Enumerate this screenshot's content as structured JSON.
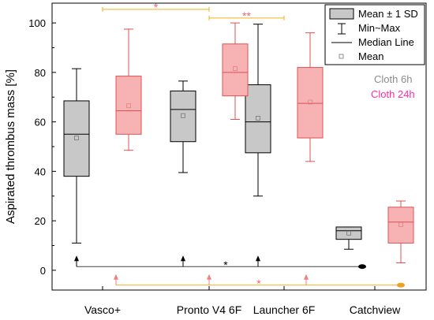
{
  "chart_data": {
    "type": "box",
    "ylabel": "Aspirated thrombus mass [%]",
    "xlabel": "",
    "ylim": [
      -8,
      108
    ],
    "yticks": [
      0,
      20,
      40,
      60,
      80,
      100
    ],
    "categories": [
      "Vasco+",
      "Pronto V4 6F",
      "Launcher 6F",
      "Catchview"
    ],
    "series": [
      {
        "name": "Cloth 6h",
        "fill": "#c8c8c8",
        "stroke": "#000000",
        "boxes": [
          {
            "category": "Vasco+",
            "min": 11,
            "q1": 38,
            "median": 55,
            "q3": 68.5,
            "max": 81.5,
            "mean": 53.5
          },
          {
            "category": "Pronto V4 6F",
            "min": 39.5,
            "q1": 52,
            "median": 65,
            "q3": 72.5,
            "max": 76.5,
            "mean": 62.5
          },
          {
            "category": "Launcher 6F",
            "min": 30,
            "q1": 47.5,
            "median": 60,
            "q3": 75,
            "max": 99.5,
            "mean": 61.5
          },
          {
            "category": "Catchview",
            "min": 8.5,
            "q1": 12.5,
            "median": 16,
            "q3": 17.5,
            "max": 17.5,
            "mean": 15
          }
        ]
      },
      {
        "name": "Cloth 24h",
        "fill": "#f7b3b3",
        "stroke": "#e05050",
        "boxes": [
          {
            "category": "Vasco+",
            "min": 48.5,
            "q1": 55,
            "median": 64.5,
            "q3": 78.5,
            "max": 97.5,
            "mean": 66.5
          },
          {
            "category": "Pronto V4 6F",
            "min": 61,
            "q1": 70.5,
            "median": 80,
            "q3": 91.5,
            "max": 100,
            "mean": 81.5
          },
          {
            "category": "Launcher 6F",
            "min": 44,
            "q1": 53.5,
            "median": 67.5,
            "q3": 82,
            "max": 96,
            "mean": 68
          },
          {
            "category": "Catchview",
            "min": 3,
            "q1": 11,
            "median": 19.5,
            "q3": 25.5,
            "max": 28,
            "mean": 18.5
          }
        ]
      }
    ],
    "legend": {
      "position": "top-right",
      "entries": [
        "Mean ± 1 SD",
        "Min~Max",
        "Median Line",
        "Mean"
      ]
    },
    "group_labels": [
      {
        "text": "Cloth 6h",
        "color": "#8c8c8c"
      },
      {
        "text": "Cloth 24h",
        "color": "#ff2fa0"
      }
    ],
    "annotations": {
      "brackets_top": [
        {
          "from": "Vasco+",
          "to": "Pronto V4 6F",
          "label": "*",
          "y": 105.5,
          "color": "#f0b020",
          "label_color": "#f06070"
        },
        {
          "from": "Pronto V4 6F",
          "to": "Launcher 6F",
          "label": "**",
          "y": 102,
          "color": "#f0b020",
          "label_color": "#f06070"
        }
      ],
      "baseline_6h": {
        "y": 1.5,
        "label": "*",
        "color": "#444444",
        "label_color": "#000000"
      },
      "baseline_24h": {
        "y": -6,
        "label": "*",
        "color": "#f0b020",
        "label_color": "#f06070"
      }
    }
  }
}
